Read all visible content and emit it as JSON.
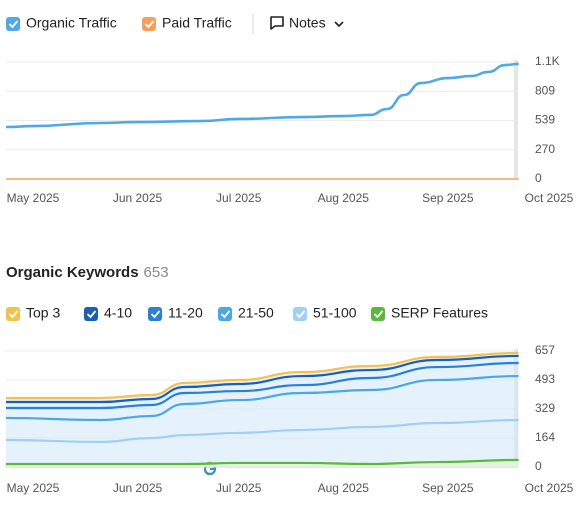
{
  "toolbar": {
    "notes": "Notes"
  },
  "chart_data": [
    {
      "type": "line",
      "x": [
        -8,
        0,
        20,
        31,
        50,
        61,
        80,
        92,
        100,
        105,
        110,
        115,
        123,
        130,
        135,
        140,
        144
      ],
      "xlim": [
        -8,
        153
      ],
      "xticks": [
        {
          "value": 0,
          "label": "May 2025"
        },
        {
          "value": 31,
          "label": "Jun 2025"
        },
        {
          "value": 61,
          "label": "Jul 2025"
        },
        {
          "value": 92,
          "label": "Aug 2025"
        },
        {
          "value": 123,
          "label": "Sep 2025"
        },
        {
          "value": 153,
          "label": "Oct 2025"
        }
      ],
      "ylim": [
        0,
        1078
      ],
      "yticks": [
        0,
        270,
        539,
        809,
        {
          "value": 1078,
          "label": "1.1K"
        }
      ],
      "grid": true,
      "series": [
        {
          "name": "Organic Traffic",
          "color": "#4ea9e6",
          "values": [
            479,
            488,
            516,
            525,
            534,
            553,
            571,
            580,
            590,
            645,
            774,
            884,
            930,
            949,
            986,
            1050,
            1060
          ]
        },
        {
          "name": "Paid Traffic",
          "color": "#f5a05a",
          "values": [
            0,
            0,
            0,
            0,
            0,
            0,
            0,
            0,
            0,
            0,
            0,
            0,
            0,
            0,
            0,
            0,
            0
          ]
        }
      ]
    },
    {
      "type": "stacked_area",
      "title": "Organic Keywords",
      "total": 653,
      "x": [
        -8,
        20,
        35,
        45,
        61,
        80,
        100,
        120,
        144
      ],
      "xlim": [
        -8,
        153
      ],
      "xticks": [
        {
          "value": 0,
          "label": "May 2025"
        },
        {
          "value": 31,
          "label": "Jun 2025"
        },
        {
          "value": 61,
          "label": "Jul 2025"
        },
        {
          "value": 92,
          "label": "Aug 2025"
        },
        {
          "value": 123,
          "label": "Sep 2025"
        },
        {
          "value": 153,
          "label": "Oct 2025"
        }
      ],
      "ylim": [
        0,
        657
      ],
      "yticks": [
        0,
        164,
        329,
        493,
        657
      ],
      "grid": true,
      "series": [
        {
          "name": "Top 3",
          "color": "#f2c14e",
          "values": [
            23,
            23,
            23,
            23,
            23,
            23,
            23,
            17,
            17
          ]
        },
        {
          "name": "4-10",
          "color": "#1a5fb4",
          "values": [
            34,
            34,
            34,
            34,
            40,
            51,
            45,
            40,
            40
          ]
        },
        {
          "name": "11-20",
          "color": "#2a7fd6",
          "values": [
            56,
            68,
            62,
            62,
            51,
            45,
            68,
            73,
            74
          ]
        },
        {
          "name": "21-50",
          "color": "#4aa8e8",
          "values": [
            125,
            124,
            125,
            176,
            186,
            209,
            209,
            244,
            249
          ]
        },
        {
          "name": "51-100",
          "color": "#9fd0f5",
          "values": [
            153,
            142,
            164,
            181,
            193,
            210,
            227,
            249,
            266
          ]
        },
        {
          "name": "SERP Features",
          "color": "#5cb83c",
          "stacked": false,
          "values": [
            17,
            17,
            17,
            17,
            23,
            23,
            17,
            28,
            40
          ]
        }
      ]
    }
  ]
}
